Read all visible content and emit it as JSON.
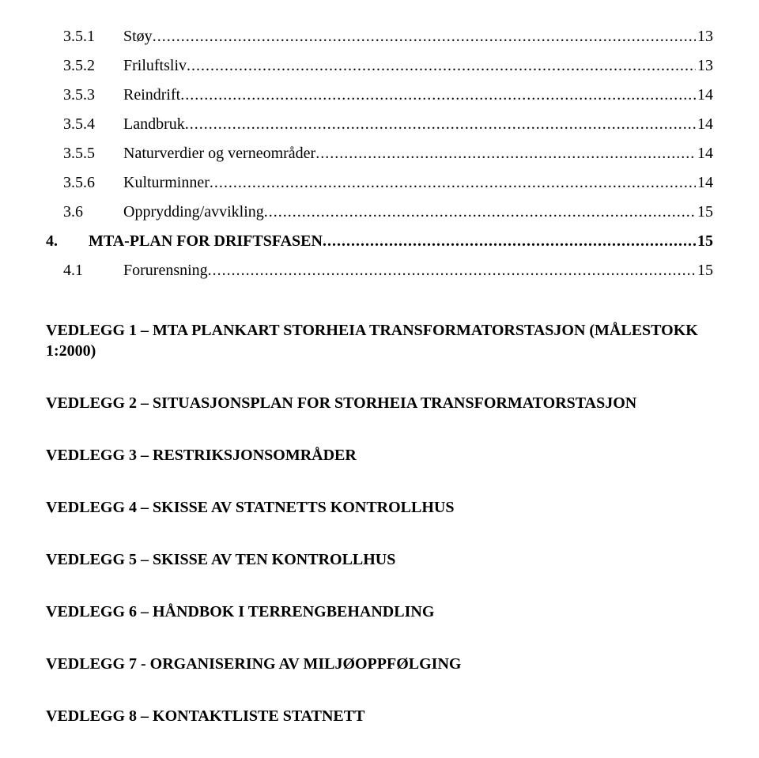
{
  "toc": {
    "items": [
      {
        "num": "3.5.1",
        "label": "Støy",
        "page": "13",
        "bold": false,
        "indent": "sub"
      },
      {
        "num": "3.5.2",
        "label": "Friluftsliv",
        "page": "13",
        "bold": false,
        "indent": "sub"
      },
      {
        "num": "3.5.3",
        "label": "Reindrift",
        "page": "14",
        "bold": false,
        "indent": "sub"
      },
      {
        "num": "3.5.4",
        "label": "Landbruk",
        "page": "14",
        "bold": false,
        "indent": "sub"
      },
      {
        "num": "3.5.5",
        "label": "Naturverdier og verneområder",
        "page": "14",
        "bold": false,
        "indent": "sub"
      },
      {
        "num": "3.5.6",
        "label": "Kulturminner",
        "page": "14",
        "bold": false,
        "indent": "sub"
      },
      {
        "num": "3.6",
        "label": "Opprydding/avvikling",
        "page": "15",
        "bold": false,
        "indent": "sub"
      },
      {
        "num": "4.",
        "label": "MTA-PLAN FOR DRIFTSFASEN",
        "page": "15",
        "bold": true,
        "indent": "top"
      },
      {
        "num": "4.1",
        "label": "Forurensning",
        "page": "15",
        "bold": false,
        "indent": "sub"
      }
    ]
  },
  "attachments": [
    "VEDLEGG 1 – MTA PLANKART STORHEIA TRANSFORMATORSTASJON (MÅLESTOKK 1:2000)",
    "VEDLEGG 2 – SITUASJONSPLAN FOR STORHEIA TRANSFORMATORSTASJON",
    "VEDLEGG 3 – RESTRIKSJONSOMRÅDER",
    "VEDLEGG 4 – SKISSE AV STATNETTS KONTROLLHUS",
    "VEDLEGG 5 – SKISSE AV TEN KONTROLLHUS",
    "VEDLEGG 6 – HÅNDBOK I TERRENGBEHANDLING",
    "VEDLEGG 7 - ORGANISERING AV MILJØOPPFØLGING",
    "VEDLEGG 8 – KONTAKTLISTE STATNETT"
  ]
}
